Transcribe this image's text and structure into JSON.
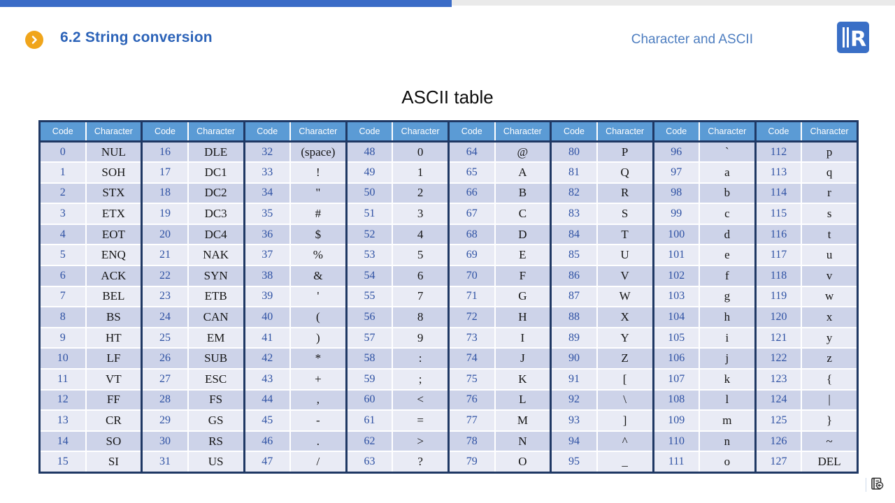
{
  "header": {
    "section_title": "6.2 String conversion",
    "subtitle": "Character and ASCII",
    "arrow_icon": "chevron-right",
    "logo_letter": "R"
  },
  "slide": {
    "title": "ASCII table"
  },
  "table": {
    "column_header_code": "Code",
    "column_header_character": "Character",
    "num_column_groups": 8,
    "num_rows": 16,
    "columns": [
      {
        "codes": [
          "0",
          "1",
          "2",
          "3",
          "4",
          "5",
          "6",
          "7",
          "8",
          "9",
          "10",
          "11",
          "12",
          "13",
          "14",
          "15"
        ],
        "chars": [
          "NUL",
          "SOH",
          "STX",
          "ETX",
          "EOT",
          "ENQ",
          "ACK",
          "BEL",
          "BS",
          "HT",
          "LF",
          "VT",
          "FF",
          "CR",
          "SO",
          "SI"
        ]
      },
      {
        "codes": [
          "16",
          "17",
          "18",
          "19",
          "20",
          "21",
          "22",
          "23",
          "24",
          "25",
          "26",
          "27",
          "28",
          "29",
          "30",
          "31"
        ],
        "chars": [
          "DLE",
          "DC1",
          "DC2",
          "DC3",
          "DC4",
          "NAK",
          "SYN",
          "ETB",
          "CAN",
          "EM",
          "SUB",
          "ESC",
          "FS",
          "GS",
          "RS",
          "US"
        ]
      },
      {
        "codes": [
          "32",
          "33",
          "34",
          "35",
          "36",
          "37",
          "38",
          "39",
          "40",
          "41",
          "42",
          "43",
          "44",
          "45",
          "46",
          "47"
        ],
        "chars": [
          "(space)",
          "!",
          "\"",
          "#",
          "$",
          "%",
          "&",
          "'",
          "(",
          ")",
          "*",
          "+",
          ",",
          "-",
          ".",
          "/"
        ]
      },
      {
        "codes": [
          "48",
          "49",
          "50",
          "51",
          "52",
          "53",
          "54",
          "55",
          "56",
          "57",
          "58",
          "59",
          "60",
          "61",
          "62",
          "63"
        ],
        "chars": [
          "0",
          "1",
          "2",
          "3",
          "4",
          "5",
          "6",
          "7",
          "8",
          "9",
          ":",
          ";",
          "<",
          "=",
          ">",
          "?"
        ]
      },
      {
        "codes": [
          "64",
          "65",
          "66",
          "67",
          "68",
          "69",
          "70",
          "71",
          "72",
          "73",
          "74",
          "75",
          "76",
          "77",
          "78",
          "79"
        ],
        "chars": [
          "@",
          "A",
          "B",
          "C",
          "D",
          "E",
          "F",
          "G",
          "H",
          "I",
          "J",
          "K",
          "L",
          "M",
          "N",
          "O"
        ]
      },
      {
        "codes": [
          "80",
          "81",
          "82",
          "83",
          "84",
          "85",
          "86",
          "87",
          "88",
          "89",
          "90",
          "91",
          "92",
          "93",
          "94",
          "95"
        ],
        "chars": [
          "P",
          "Q",
          "R",
          "S",
          "T",
          "U",
          "V",
          "W",
          "X",
          "Y",
          "Z",
          "[",
          "\\",
          "]",
          "^",
          "_"
        ]
      },
      {
        "codes": [
          "96",
          "97",
          "98",
          "99",
          "100",
          "101",
          "102",
          "103",
          "104",
          "105",
          "106",
          "107",
          "108",
          "109",
          "110",
          "111"
        ],
        "chars": [
          "`",
          "a",
          "b",
          "c",
          "d",
          "e",
          "f",
          "g",
          "h",
          "i",
          "j",
          "k",
          "l",
          "m",
          "n",
          "o"
        ]
      },
      {
        "codes": [
          "112",
          "113",
          "114",
          "115",
          "116",
          "117",
          "118",
          "119",
          "120",
          "121",
          "122",
          "123",
          "124",
          "125",
          "126",
          "127"
        ],
        "chars": [
          "p",
          "q",
          "r",
          "s",
          "t",
          "u",
          "v",
          "w",
          "x",
          "y",
          "z",
          "{",
          "|",
          "}",
          "~",
          "DEL"
        ]
      }
    ]
  },
  "footer": {
    "return_icon": "list-with-back-arrow"
  },
  "colors": {
    "top_bar_blue": "#3B6CC7",
    "top_bar_gray": "#EAEAEA",
    "heading_blue": "#2C63B8",
    "subtitle_blue": "#4E7EC0",
    "accent_orange": "#F0A51B",
    "logo_blue": "#3A6FC6",
    "table_header_blue": "#5B9BD5",
    "table_border_navy": "#1F3864",
    "row_even": "#CDD3E9",
    "row_odd": "#E9EBF5",
    "code_text_blue": "#2E51A3"
  }
}
